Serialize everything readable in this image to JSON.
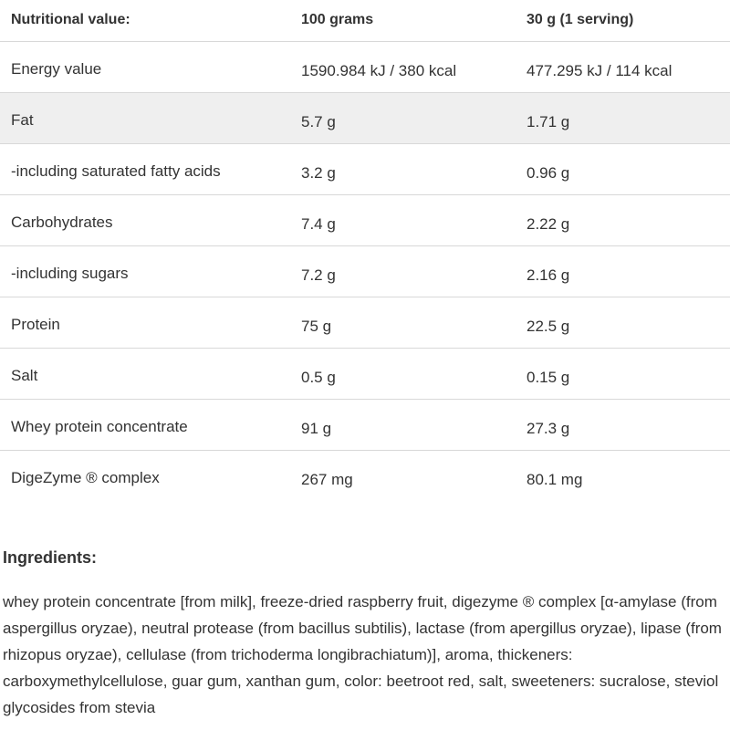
{
  "table": {
    "headers": [
      "Nutritional value:",
      "100 grams",
      "30 g (1 serving)"
    ],
    "rows": [
      {
        "name": "Energy value",
        "per_100g": "1590.984 kJ / 380 kcal",
        "per_serving": "477.295 kJ / 114 kcal"
      },
      {
        "name": "Fat",
        "per_100g": "5.7 g",
        "per_serving": "1.71 g"
      },
      {
        "name": "-including saturated fatty acids",
        "per_100g": "3.2 g",
        "per_serving": "0.96 g"
      },
      {
        "name": "Carbohydrates",
        "per_100g": "7.4 g",
        "per_serving": "2.22 g"
      },
      {
        "name": "-including sugars",
        "per_100g": "7.2 g",
        "per_serving": "2.16 g"
      },
      {
        "name": "Protein",
        "per_100g": "75 g",
        "per_serving": "22.5 g"
      },
      {
        "name": "Salt",
        "per_100g": "0.5 g",
        "per_serving": "0.15 g"
      },
      {
        "name": "Whey protein concentrate",
        "per_100g": "91 g",
        "per_serving": "27.3 g"
      },
      {
        "name": "DigeZyme ® complex",
        "per_100g": "267 mg",
        "per_serving": "80.1 mg"
      }
    ]
  },
  "ingredients": {
    "title": "Ingredients:",
    "text": "whey protein concentrate [from milk], freeze-dried raspberry fruit, digezyme ® complex [α-amylase (from aspergillus oryzae), neutral protease (from bacillus subtilis), lactase (from apergillus oryzae), lipase (from rhizopus oryzae), cellulase (from trichoderma longibrachiatum)], aroma, thickeners: carboxymethylcellulose, guar gum, xanthan gum, color: beetroot red, salt, sweeteners: sucralose, steviol glycosides from stevia"
  },
  "colors": {
    "text": "#333333",
    "row_shade": "#efefef",
    "divider": "#d8d8d8",
    "background": "#ffffff"
  }
}
